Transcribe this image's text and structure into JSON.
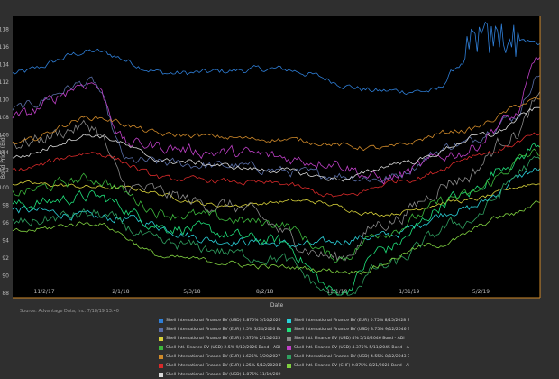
{
  "chart_data": {
    "type": "line",
    "xlabel": "Date",
    "ylabel": "Bond Price (Bid)",
    "x_tick_labels": [
      "11/2/17",
      "2/1/18",
      "5/3/18",
      "8/2/18",
      "11/1/18",
      "1/31/19",
      "5/2/19"
    ],
    "y_ticks": [
      88,
      90,
      92,
      94,
      96,
      98,
      100,
      102,
      104,
      106,
      108,
      110,
      112,
      114,
      116,
      118
    ],
    "ylim": [
      87.5,
      119.5
    ],
    "grid": false,
    "legend_position": "bottom",
    "source": "Source: Advantage Data, Inc. 7/18/19 13:40",
    "series": [
      {
        "name": "Shell International Finance BV (USD) 2.875% 5/10/2026 Bond - ADI",
        "color": "#2f7fd8",
        "start": 113.0,
        "keys": [
          [
            0,
            113.0
          ],
          [
            0.15,
            115.5
          ],
          [
            0.3,
            113
          ],
          [
            0.5,
            113.5
          ],
          [
            0.7,
            111
          ],
          [
            0.8,
            111
          ],
          [
            0.85,
            114
          ],
          [
            0.88,
            117
          ],
          [
            0.95,
            117
          ],
          [
            1,
            116.5
          ]
        ],
        "noise": 0.6
      },
      {
        "name": "Shell International Finance BV (EUR) 0.75% 8/15/2028 Bond - ADI",
        "color": "#2ad0d8",
        "keys": [
          [
            0,
            97.5
          ],
          [
            0.2,
            96.5
          ],
          [
            0.4,
            94
          ],
          [
            0.55,
            93.5
          ],
          [
            0.7,
            94.5
          ],
          [
            0.85,
            97.5
          ],
          [
            1,
            102
          ]
        ],
        "noise": 0.8
      },
      {
        "name": "Shell International Finance BV (EUR) 2.5% 3/24/2026 Bond - ADI",
        "color": "#5a6fa8",
        "keys": [
          [
            0,
            109
          ],
          [
            0.15,
            112
          ],
          [
            0.22,
            103
          ],
          [
            0.4,
            102.5
          ],
          [
            0.6,
            101.5
          ],
          [
            0.7,
            101
          ],
          [
            0.85,
            105
          ],
          [
            0.95,
            108
          ],
          [
            1,
            113
          ]
        ],
        "noise": 0.9
      },
      {
        "name": "Shell International Finance BV (USD) 3.75% 9/12/2046 Bond - ADI",
        "color": "#1fe07a",
        "keys": [
          [
            0,
            98
          ],
          [
            0.15,
            99
          ],
          [
            0.3,
            95.5
          ],
          [
            0.5,
            94
          ],
          [
            0.62,
            88
          ],
          [
            0.7,
            93
          ],
          [
            0.85,
            99
          ],
          [
            0.95,
            103
          ],
          [
            1,
            105
          ]
        ],
        "noise": 1.1
      },
      {
        "name": "Shell International Finance BV (EUR) 0.375% 2/15/2025 Reg S Bond - ADI",
        "color": "#d8d23a",
        "keys": [
          [
            0,
            100.5
          ],
          [
            0.2,
            100
          ],
          [
            0.4,
            98
          ],
          [
            0.55,
            98.5
          ],
          [
            0.7,
            97
          ],
          [
            0.85,
            98.5
          ],
          [
            1,
            100.5
          ]
        ],
        "noise": 0.4
      },
      {
        "name": "Shell Intl. Finance BV (USD) 4% 5/10/2046 Bond - ADI",
        "color": "#8a8a8a",
        "keys": [
          [
            0,
            105
          ],
          [
            0.15,
            107
          ],
          [
            0.22,
            100
          ],
          [
            0.4,
            98
          ],
          [
            0.62,
            92
          ],
          [
            0.7,
            96
          ],
          [
            0.85,
            101
          ],
          [
            0.95,
            106
          ],
          [
            1,
            110
          ]
        ],
        "noise": 1.3
      },
      {
        "name": "Shell Intl. Finance BV (USD) 2.5% 9/12/2026 Bond - ADI",
        "color": "#3db83d",
        "keys": [
          [
            0,
            99.5
          ],
          [
            0.15,
            101
          ],
          [
            0.3,
            97
          ],
          [
            0.5,
            96
          ],
          [
            0.62,
            92
          ],
          [
            0.7,
            95
          ],
          [
            0.85,
            99
          ],
          [
            1,
            104
          ]
        ],
        "noise": 1.0
      },
      {
        "name": "Shell Intl. Finance BV (USD) 4.375% 5/11/2045 Bond - ADI",
        "color": "#c040c8",
        "keys": [
          [
            0,
            108
          ],
          [
            0.15,
            112
          ],
          [
            0.22,
            105
          ],
          [
            0.4,
            104
          ],
          [
            0.6,
            103
          ],
          [
            0.7,
            101
          ],
          [
            0.85,
            104
          ],
          [
            0.95,
            108
          ],
          [
            1,
            115
          ]
        ],
        "noise": 1.1
      },
      {
        "name": "Shell International Finance BV (EUR) 1.625% 1/20/2027 Bond - ADI",
        "color": "#d08a2a",
        "keys": [
          [
            0,
            105
          ],
          [
            0.15,
            108
          ],
          [
            0.3,
            106
          ],
          [
            0.5,
            105.5
          ],
          [
            0.7,
            104.5
          ],
          [
            0.85,
            106.5
          ],
          [
            1,
            110
          ]
        ],
        "noise": 0.5
      },
      {
        "name": "Shell International Finance BV (USD) 4.55% 8/12/2043 Bond - ADI",
        "color": "#2fa060",
        "keys": [
          [
            0,
            96
          ],
          [
            0.15,
            97
          ],
          [
            0.3,
            93.5
          ],
          [
            0.5,
            92
          ],
          [
            0.62,
            87.5
          ],
          [
            0.7,
            91
          ],
          [
            0.85,
            96
          ],
          [
            1,
            103
          ]
        ],
        "noise": 1.1
      },
      {
        "name": "Shell International Finance BV (EUR) 1.25% 5/12/2028 Bond - ADI",
        "color": "#d82a2a",
        "keys": [
          [
            0,
            102
          ],
          [
            0.15,
            104
          ],
          [
            0.3,
            101
          ],
          [
            0.5,
            100.5
          ],
          [
            0.62,
            99
          ],
          [
            0.75,
            101
          ],
          [
            0.9,
            104
          ],
          [
            1,
            106
          ]
        ],
        "noise": 0.5
      },
      {
        "name": "Shell Intl. Finance BV (CHF) 0.875% 8/21/2028 Bond - ADI",
        "color": "#7fd040",
        "keys": [
          [
            0,
            95
          ],
          [
            0.15,
            96
          ],
          [
            0.3,
            92
          ],
          [
            0.5,
            91
          ],
          [
            0.65,
            90.5
          ],
          [
            0.8,
            93.5
          ],
          [
            0.95,
            97
          ],
          [
            1,
            98.5
          ]
        ],
        "noise": 0.5
      },
      {
        "name": "Shell International Finance BV (USD) 1.875% 11/10/2026 Bond - ADI",
        "color": "#d8d8d8",
        "keys": [
          [
            0,
            103.5
          ],
          [
            0.15,
            106
          ],
          [
            0.3,
            103
          ],
          [
            0.5,
            102
          ],
          [
            0.62,
            101
          ],
          [
            0.75,
            103
          ],
          [
            0.9,
            106
          ],
          [
            1,
            109
          ]
        ],
        "noise": 0.5
      }
    ]
  }
}
